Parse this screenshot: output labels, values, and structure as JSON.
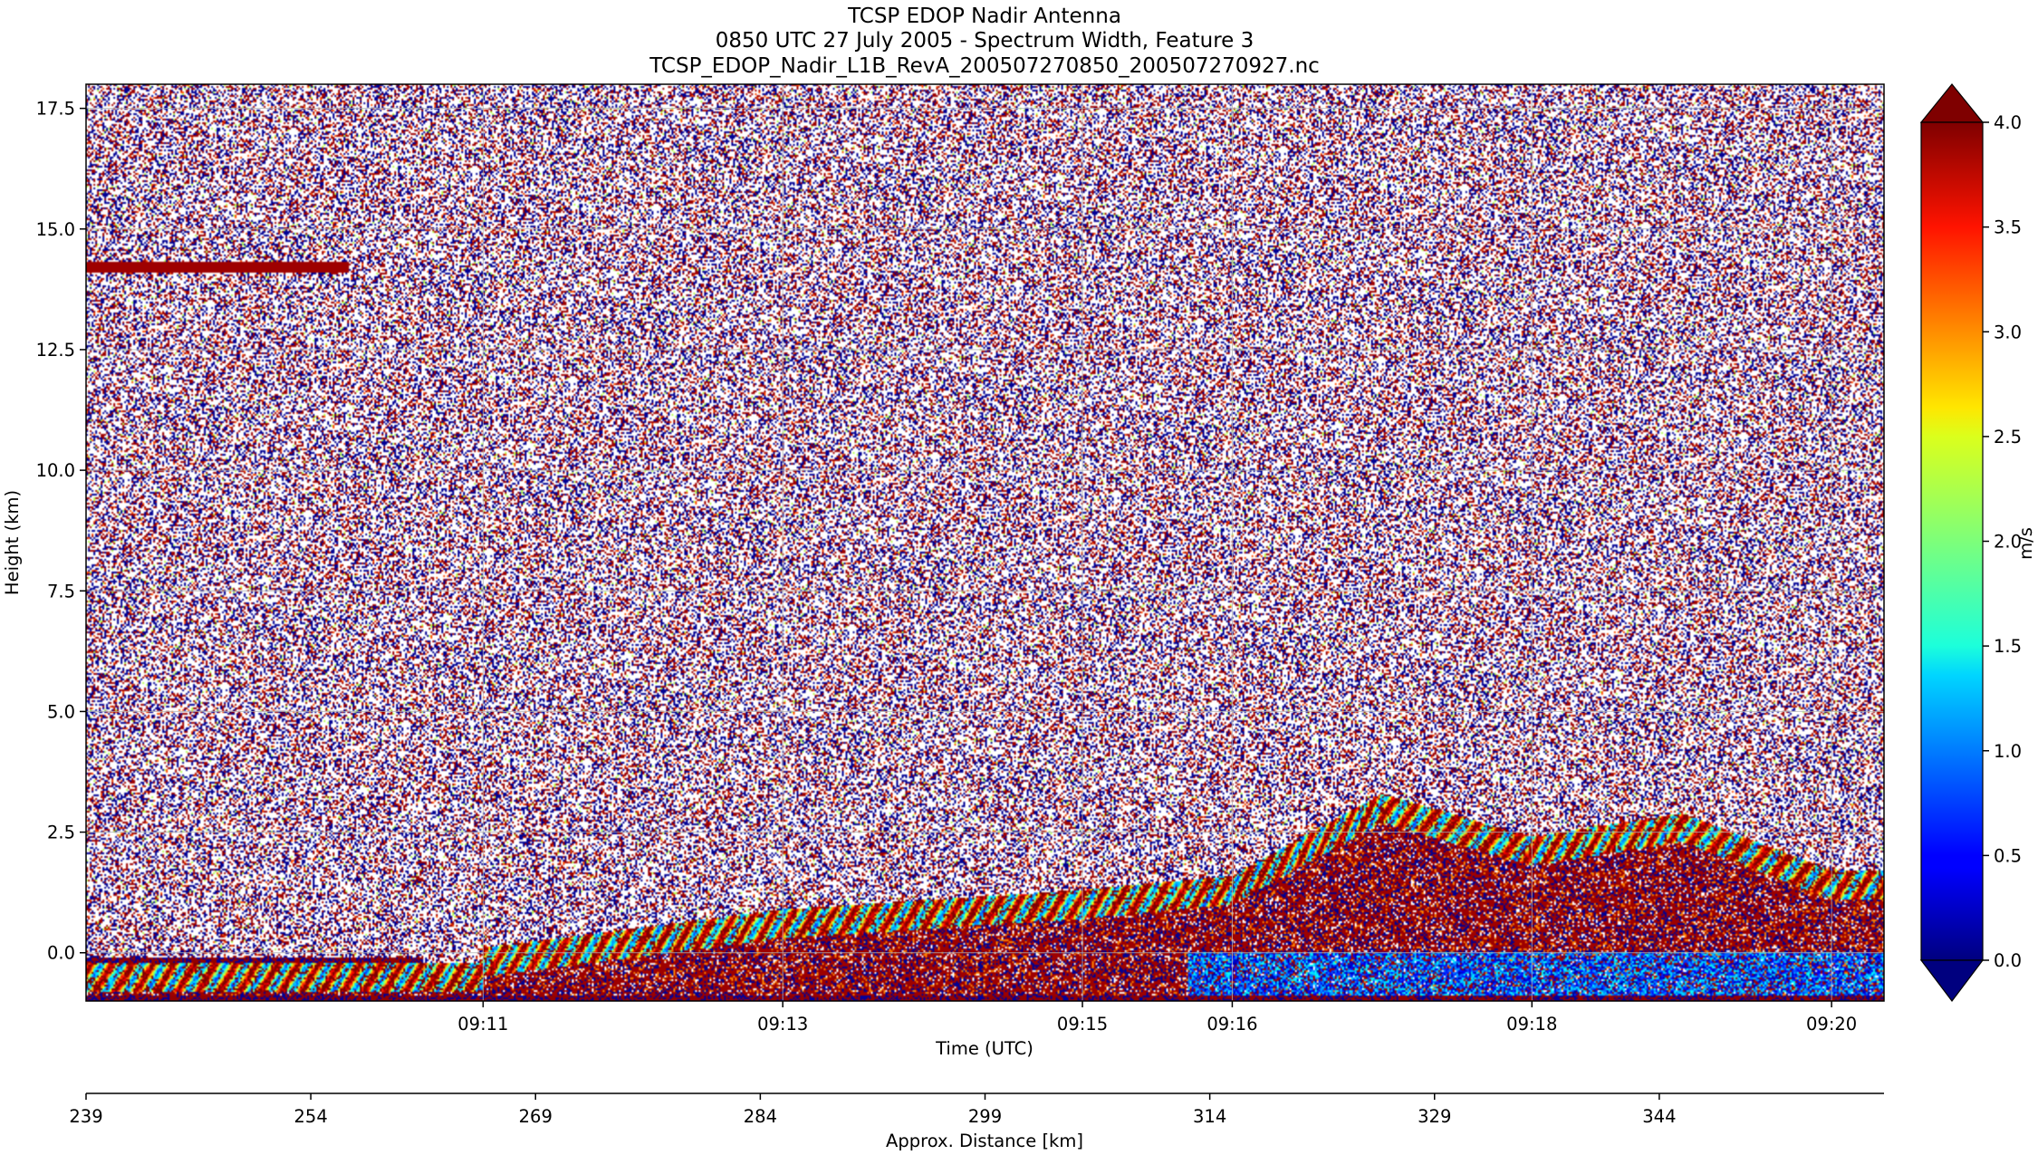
{
  "chart_data": {
    "type": "heatmap",
    "title": [
      "TCSP EDOP Nadir Antenna",
      "0850 UTC 27 July 2005 - Spectrum Width, Feature 3",
      "TCSP_EDOP_Nadir_L1B_RevA_200507270850_200507270927.nc"
    ],
    "xlabel": "Time (UTC)",
    "ylabel": "Height (km)",
    "x_ticks": [
      "09:11",
      "09:13",
      "09:15",
      "09:16",
      "09:18",
      "09:20"
    ],
    "ylim": [
      -1.0,
      18.0
    ],
    "y_ticks": [
      0.0,
      2.5,
      5.0,
      7.5,
      10.0,
      12.5,
      15.0,
      17.5
    ],
    "y_tick_labels": [
      "0.0",
      "2.5",
      "5.0",
      "7.5",
      "10.0",
      "12.5",
      "15.0",
      "17.5"
    ],
    "grid": true,
    "secondary_xlabel": "Approx. Distance [km]",
    "secondary_x_ticks": [
      239,
      254,
      269,
      284,
      299,
      314,
      329,
      344
    ],
    "secondary_x_tick_labels": [
      "239",
      "254",
      "269",
      "284",
      "299",
      "314",
      "329",
      "344"
    ],
    "colorbar": {
      "label": "m/s",
      "range": [
        0.0,
        4.0
      ],
      "ticks": [
        "0.0",
        "0.5",
        "1.0",
        "1.5",
        "2.0",
        "2.5",
        "3.0",
        "3.5",
        "4.0"
      ],
      "extend": "both",
      "colormap": "jet"
    },
    "features": {
      "cloud_top_profile_km": [
        {
          "time": "09:11",
          "top": 0.1
        },
        {
          "time": "09:13",
          "top": 0.9
        },
        {
          "time": "09:15",
          "top": 1.3
        },
        {
          "time": "09:16",
          "top": 1.6
        },
        {
          "time": "09:17",
          "top": 3.3
        },
        {
          "time": "09:18",
          "top": 2.4
        },
        {
          "time": "09:19",
          "top": 2.9
        },
        {
          "time": "09:20",
          "top": 1.7
        }
      ],
      "noise_band_height_km": 14.2
    }
  }
}
